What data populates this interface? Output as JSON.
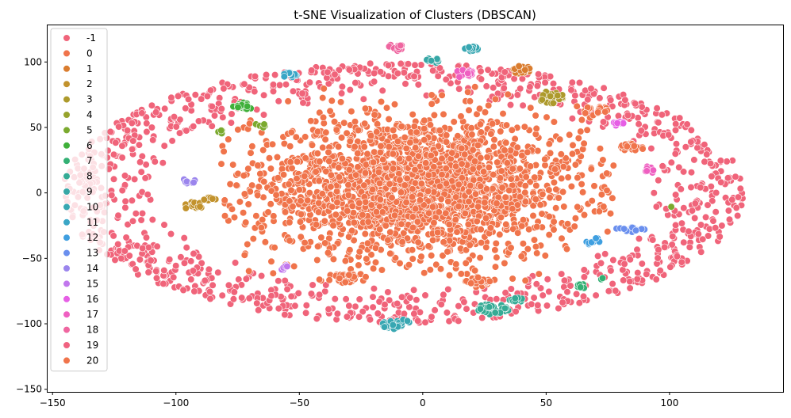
{
  "chart_data": {
    "type": "scatter",
    "title": "t-SNE Visualization of Clusters (DBSCAN)",
    "xlabel": "",
    "ylabel": "",
    "xlim": [
      -152,
      146
    ],
    "ylim": [
      -152,
      128
    ],
    "xticks": [
      -150,
      -100,
      -50,
      0,
      50,
      100
    ],
    "yticks": [
      -150,
      -100,
      -50,
      0,
      50,
      100
    ],
    "grid": false,
    "legend_placement": "upper-left",
    "series": [
      {
        "name": "-1",
        "color": "#f0647a",
        "clusters": [
          {
            "cx": -8,
            "cy": 0,
            "rx": 138,
            "ry": 138,
            "n": 1100,
            "shape": "ring",
            "inner": 0.72
          }
        ]
      },
      {
        "name": "0",
        "color": "#f0744b",
        "clusters": [
          {
            "cx": -2,
            "cy": 5,
            "rx": 80,
            "ry": 80,
            "n": 2200,
            "shape": "gauss"
          },
          {
            "cx": -33,
            "cy": -65,
            "rx": 6,
            "ry": 4,
            "n": 30,
            "shape": "blob"
          },
          {
            "cx": 23,
            "cy": -68,
            "rx": 6,
            "ry": 4,
            "n": 30,
            "shape": "blob"
          },
          {
            "cx": 70,
            "cy": 63,
            "rx": 5,
            "ry": 4,
            "n": 25,
            "shape": "blob"
          },
          {
            "cx": 85,
            "cy": 35,
            "rx": 5,
            "ry": 3,
            "n": 25,
            "shape": "blob"
          }
        ]
      },
      {
        "name": "1",
        "color": "#da7d2f",
        "clusters": [
          {
            "cx": 40,
            "cy": 94,
            "rx": 4,
            "ry": 3,
            "n": 22,
            "shape": "blob"
          }
        ]
      },
      {
        "name": "2",
        "color": "#c2922c",
        "clusters": [
          {
            "cx": -93,
            "cy": -10,
            "rx": 4,
            "ry": 3,
            "n": 18,
            "shape": "blob"
          },
          {
            "cx": -86,
            "cy": -5,
            "rx": 3,
            "ry": 2,
            "n": 8,
            "shape": "blob"
          }
        ]
      },
      {
        "name": "3",
        "color": "#ad9a2c",
        "clusters": [
          {
            "cx": 52,
            "cy": 73,
            "rx": 6,
            "ry": 5,
            "n": 30,
            "shape": "blob"
          }
        ]
      },
      {
        "name": "4",
        "color": "#97a32c",
        "clusters": []
      },
      {
        "name": "5",
        "color": "#7baa2f",
        "clusters": [
          {
            "cx": -82,
            "cy": 47,
            "rx": 2,
            "ry": 2,
            "n": 4,
            "shape": "blob"
          },
          {
            "cx": -66,
            "cy": 51,
            "rx": 3,
            "ry": 2,
            "n": 6,
            "shape": "blob"
          },
          {
            "cx": 101,
            "cy": -11,
            "rx": 0.5,
            "ry": 0.5,
            "n": 1,
            "shape": "blob"
          }
        ]
      },
      {
        "name": "6",
        "color": "#3fb03a",
        "clusters": [
          {
            "cx": -73,
            "cy": 66,
            "rx": 4,
            "ry": 3,
            "n": 22,
            "shape": "blob"
          }
        ]
      },
      {
        "name": "7",
        "color": "#33b074",
        "clusters": [
          {
            "cx": 64,
            "cy": -71,
            "rx": 3,
            "ry": 2,
            "n": 12,
            "shape": "blob"
          },
          {
            "cx": 73,
            "cy": -66,
            "rx": 1,
            "ry": 1,
            "n": 2,
            "shape": "blob"
          }
        ]
      },
      {
        "name": "8",
        "color": "#35ab95",
        "clusters": [
          {
            "cx": 28,
            "cy": -89,
            "rx": 7,
            "ry": 4,
            "n": 40,
            "shape": "blob"
          },
          {
            "cx": 38,
            "cy": -82,
            "rx": 3,
            "ry": 2,
            "n": 10,
            "shape": "blob"
          }
        ]
      },
      {
        "name": "9",
        "color": "#37a7a6",
        "clusters": [
          {
            "cx": 4,
            "cy": 101,
            "rx": 3,
            "ry": 2,
            "n": 12,
            "shape": "blob"
          }
        ]
      },
      {
        "name": "10",
        "color": "#38a7b2",
        "clusters": [
          {
            "cx": -11,
            "cy": -100,
            "rx": 6,
            "ry": 4,
            "n": 40,
            "shape": "blob"
          },
          {
            "cx": 20,
            "cy": 110,
            "rx": 3,
            "ry": 2,
            "n": 14,
            "shape": "blob"
          }
        ]
      },
      {
        "name": "11",
        "color": "#3aa6c6",
        "clusters": [
          {
            "cx": -54,
            "cy": 90,
            "rx": 3,
            "ry": 2,
            "n": 12,
            "shape": "blob"
          }
        ]
      },
      {
        "name": "12",
        "color": "#3f9fe0",
        "clusters": [
          {
            "cx": 69,
            "cy": -37,
            "rx": 3,
            "ry": 3,
            "n": 12,
            "shape": "blob"
          }
        ]
      },
      {
        "name": "13",
        "color": "#6a8fee",
        "clusters": [
          {
            "cx": 84,
            "cy": -28,
            "rx": 6,
            "ry": 2,
            "n": 16,
            "shape": "blob"
          }
        ]
      },
      {
        "name": "14",
        "color": "#9b85ed",
        "clusters": [
          {
            "cx": -95,
            "cy": 9,
            "rx": 3,
            "ry": 2,
            "n": 8,
            "shape": "blob"
          }
        ]
      },
      {
        "name": "15",
        "color": "#c177ed",
        "clusters": [
          {
            "cx": -56,
            "cy": -57,
            "rx": 2,
            "ry": 2,
            "n": 6,
            "shape": "blob"
          }
        ]
      },
      {
        "name": "16",
        "color": "#e65fe5",
        "clusters": [
          {
            "cx": 79,
            "cy": 53,
            "rx": 3,
            "ry": 2,
            "n": 10,
            "shape": "blob"
          }
        ]
      },
      {
        "name": "17",
        "color": "#ef5fc1",
        "clusters": [
          {
            "cx": 17,
            "cy": 91,
            "rx": 4,
            "ry": 3,
            "n": 14,
            "shape": "blob"
          },
          {
            "cx": 92,
            "cy": 18,
            "rx": 2,
            "ry": 3,
            "n": 10,
            "shape": "blob"
          }
        ]
      },
      {
        "name": "18",
        "color": "#ef66a0",
        "clusters": [
          {
            "cx": -11,
            "cy": 111,
            "rx": 3,
            "ry": 3,
            "n": 16,
            "shape": "blob"
          }
        ]
      },
      {
        "name": "19",
        "color": "#f06280",
        "clusters": []
      },
      {
        "name": "20",
        "color": "#f0744b",
        "clusters": []
      }
    ]
  }
}
